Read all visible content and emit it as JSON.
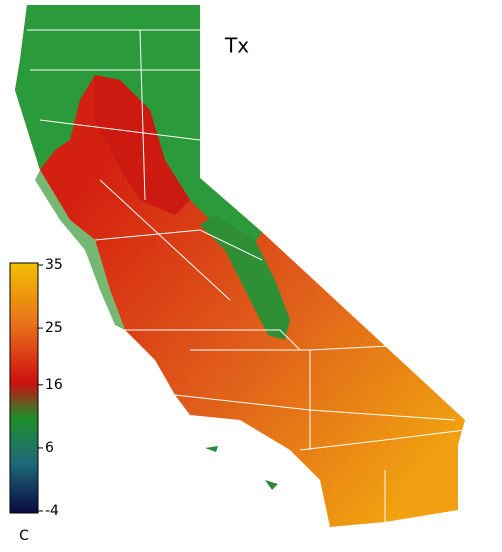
{
  "title": "Tx",
  "colorbar": {
    "label": "C",
    "lim": [
      -4,
      35
    ],
    "ticks": [
      35,
      25,
      16,
      6,
      -4
    ]
  }
}
